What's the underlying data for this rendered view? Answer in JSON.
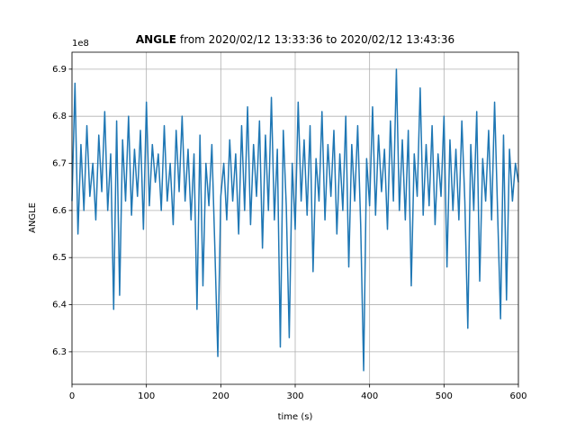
{
  "chart_data": {
    "type": "line",
    "title_prefix": "ANGLE",
    "title": "from 2020/02/12 13:33:36 to 2020/02/12 13:43:36",
    "x_label": "time (s)",
    "y_label": "ANGLE",
    "y_offset_label": "1e8",
    "x": [
      0,
      4,
      8,
      12,
      16,
      20,
      24,
      28,
      32,
      36,
      40,
      44,
      48,
      52,
      56,
      60,
      64,
      68,
      72,
      76,
      80,
      84,
      88,
      92,
      96,
      100,
      104,
      108,
      112,
      116,
      120,
      124,
      128,
      132,
      136,
      140,
      144,
      148,
      152,
      156,
      160,
      164,
      168,
      172,
      176,
      180,
      184,
      188,
      192,
      196,
      200,
      204,
      208,
      212,
      216,
      220,
      224,
      228,
      232,
      236,
      240,
      244,
      248,
      252,
      256,
      260,
      264,
      268,
      272,
      276,
      280,
      284,
      288,
      292,
      296,
      300,
      304,
      308,
      312,
      316,
      320,
      324,
      328,
      332,
      336,
      340,
      344,
      348,
      352,
      356,
      360,
      364,
      368,
      372,
      376,
      380,
      384,
      388,
      392,
      396,
      400,
      404,
      408,
      412,
      416,
      420,
      424,
      428,
      432,
      436,
      440,
      444,
      448,
      452,
      456,
      460,
      464,
      468,
      472,
      476,
      480,
      484,
      488,
      492,
      496,
      500,
      504,
      508,
      512,
      516,
      520,
      524,
      528,
      532,
      536,
      540,
      544,
      548,
      552,
      556,
      560,
      564,
      568,
      572,
      576,
      580,
      584,
      588,
      592,
      596,
      600
    ],
    "series": [
      {
        "name": "ANGLE",
        "color": "#1f77b4",
        "values": [
          6.62,
          6.87,
          6.55,
          6.74,
          6.6,
          6.78,
          6.63,
          6.7,
          6.58,
          6.76,
          6.64,
          6.81,
          6.6,
          6.72,
          6.39,
          6.79,
          6.42,
          6.75,
          6.62,
          6.8,
          6.59,
          6.73,
          6.63,
          6.77,
          6.56,
          6.83,
          6.61,
          6.74,
          6.66,
          6.72,
          6.6,
          6.78,
          6.62,
          6.7,
          6.57,
          6.77,
          6.64,
          6.8,
          6.62,
          6.73,
          6.58,
          6.72,
          6.39,
          6.76,
          6.44,
          6.7,
          6.61,
          6.74,
          6.52,
          6.29,
          6.63,
          6.7,
          6.58,
          6.75,
          6.62,
          6.72,
          6.55,
          6.78,
          6.6,
          6.82,
          6.57,
          6.74,
          6.63,
          6.79,
          6.52,
          6.76,
          6.6,
          6.84,
          6.58,
          6.73,
          6.31,
          6.77,
          6.61,
          6.33,
          6.7,
          6.56,
          6.83,
          6.62,
          6.75,
          6.59,
          6.78,
          6.47,
          6.71,
          6.62,
          6.81,
          6.58,
          6.74,
          6.63,
          6.77,
          6.55,
          6.72,
          6.6,
          6.8,
          6.48,
          6.74,
          6.62,
          6.78,
          6.57,
          6.26,
          6.71,
          6.61,
          6.82,
          6.59,
          6.76,
          6.64,
          6.73,
          6.56,
          6.79,
          6.62,
          6.9,
          6.6,
          6.75,
          6.58,
          6.77,
          6.44,
          6.72,
          6.63,
          6.86,
          6.59,
          6.74,
          6.61,
          6.78,
          6.57,
          6.72,
          6.63,
          6.8,
          6.48,
          6.75,
          6.6,
          6.73,
          6.58,
          6.79,
          6.62,
          6.35,
          6.74,
          6.6,
          6.81,
          6.45,
          6.71,
          6.62,
          6.77,
          6.58,
          6.83,
          6.6,
          6.37,
          6.76,
          6.41,
          6.73,
          6.62,
          6.7,
          6.66
        ]
      }
    ],
    "xlim": [
      0,
      600
    ],
    "xticks": [
      0,
      100,
      200,
      300,
      400,
      500,
      600
    ],
    "ylim": [
      6.231,
      6.936
    ],
    "yticks": [
      6.3,
      6.4,
      6.5,
      6.6,
      6.7,
      6.8,
      6.9
    ],
    "grid": true
  }
}
